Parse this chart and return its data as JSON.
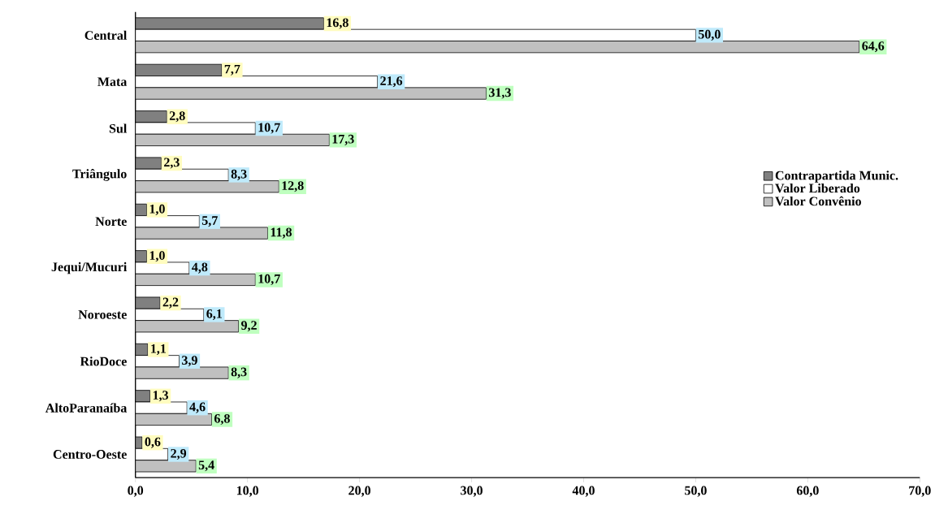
{
  "chart_data": {
    "type": "bar",
    "orientation": "horizontal",
    "legend": "right",
    "categories": [
      "Central",
      "Mata",
      "Sul",
      "Triângulo",
      "Norte",
      "Jequi/Mucuri",
      "Noroeste",
      "RioDoce",
      "AltoParanaíba",
      "Centro-Oeste"
    ],
    "series": [
      {
        "name": "Contrapartida Munic.",
        "color": "#808080",
        "values": [
          16.8,
          7.7,
          2.8,
          2.3,
          1.0,
          1.0,
          2.2,
          1.1,
          1.3,
          0.6
        ],
        "value_labels": [
          "16,8",
          "7,7",
          "2,8",
          "2,3",
          "1,0",
          "1,0",
          "2,2",
          "1,1",
          "1,3",
          "0,6"
        ]
      },
      {
        "name": "Valor Liberado",
        "color": "#ffffff",
        "values": [
          50.0,
          21.6,
          10.7,
          8.3,
          5.7,
          4.8,
          6.1,
          3.9,
          4.6,
          2.9
        ],
        "value_labels": [
          "50,0",
          "21,6",
          "10,7",
          "8,3",
          "5,7",
          "4,8",
          "6,1",
          "3,9",
          "4,6",
          "2,9"
        ]
      },
      {
        "name": "Valor Convênio",
        "color": "#c0c0c0",
        "values": [
          64.6,
          31.3,
          17.3,
          12.8,
          11.8,
          10.7,
          9.2,
          8.3,
          6.8,
          5.4
        ],
        "value_labels": [
          "64,6",
          "31,3",
          "17,3",
          "12,8",
          "11,8",
          "10,7",
          "9,2",
          "8,3",
          "6,8",
          "5,4"
        ]
      }
    ],
    "xlim": [
      0,
      70
    ],
    "xticks": [
      {
        "value": 0,
        "label": "0,0"
      },
      {
        "value": 10,
        "label": "10,0"
      },
      {
        "value": 20,
        "label": "20,0"
      },
      {
        "value": 30,
        "label": "30,0"
      },
      {
        "value": 40,
        "label": "40,0"
      },
      {
        "value": 50,
        "label": "50,0"
      },
      {
        "value": 60,
        "label": "60,0"
      },
      {
        "value": 70,
        "label": "70,0"
      }
    ]
  }
}
